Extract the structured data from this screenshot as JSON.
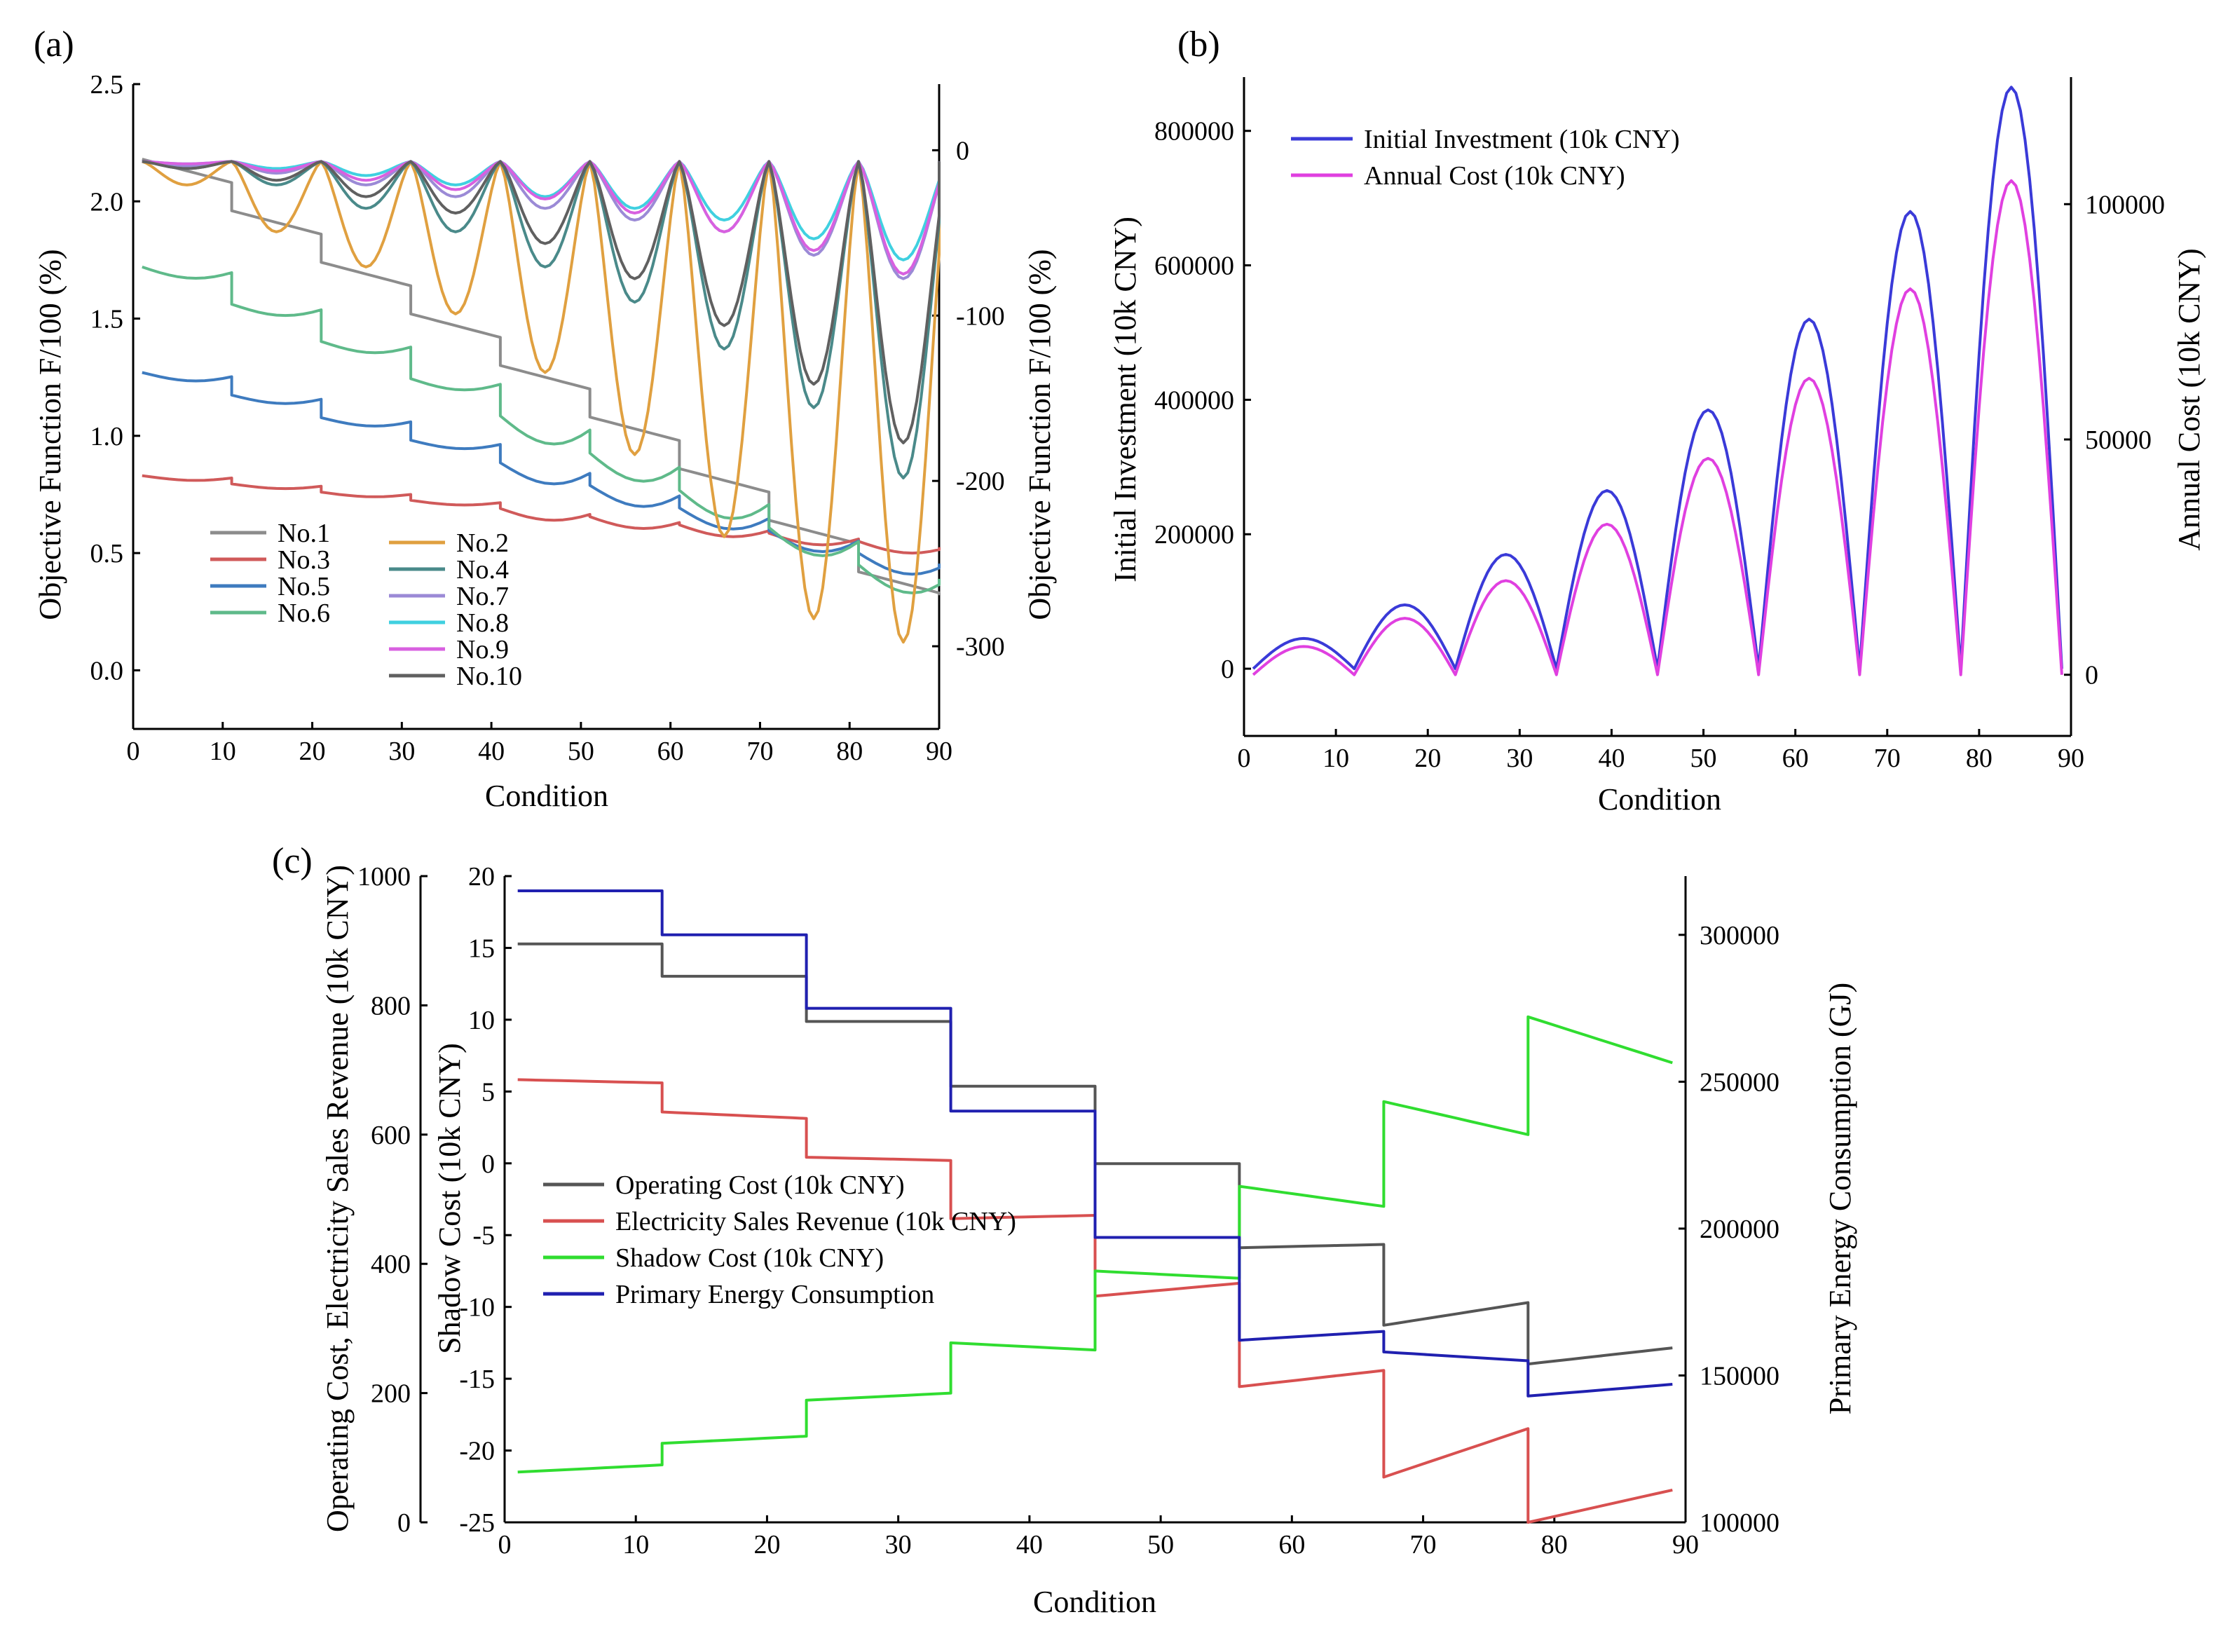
{
  "chart_data": [
    {
      "id": "a",
      "type": "line",
      "panel_label": "(a)",
      "xlabel": "Condition",
      "ylabel": "Objective Function F/100 (%)",
      "y2label": "Objective Function F/100 (%)",
      "xlim": [
        0,
        90
      ],
      "ylim": [
        -0.25,
        2.5
      ],
      "y2lim": [
        -350,
        40
      ],
      "xticks": [
        "0",
        "10",
        "20",
        "30",
        "40",
        "50",
        "60",
        "70",
        "80",
        "90"
      ],
      "yticks": [
        "0.0",
        "0.5",
        "1.0",
        "1.5",
        "2.0",
        "2.5"
      ],
      "y2ticks": [
        "0",
        "-100",
        "-200",
        "-300"
      ],
      "legend_position": "bottom-left",
      "series": [
        {
          "name": "No.1",
          "color": "#8c8c8c",
          "axis": "left",
          "kind": "flat",
          "start": 2.18,
          "end": 0.42,
          "slope": 0.001,
          "drop": 0.04,
          "dip": 0
        },
        {
          "name": "No.3",
          "color": "#d05a5a",
          "axis": "left",
          "kind": "step",
          "start": 0.83,
          "end": 0.55,
          "slope": 0.001,
          "drop": 0.04,
          "dip": 0.05
        },
        {
          "name": "No.5",
          "color": "#3e7bbf",
          "axis": "left",
          "kind": "step",
          "start": 1.27,
          "end": 0.5,
          "slope": 0.001,
          "drop": 0.06,
          "dip": 0.09
        },
        {
          "name": "No.6",
          "color": "#5fba8a",
          "axis": "left",
          "kind": "step",
          "start": 1.72,
          "end": 0.45,
          "slope": 0.001,
          "drop": 0.07,
          "dip": 0.12
        },
        {
          "name": "No.2",
          "color": "#e0a040",
          "axis": "left",
          "kind": "vdip",
          "start": 2.17,
          "end": 2.15,
          "dip_depths": [
            0.1,
            0.3,
            0.45,
            0.65,
            0.9,
            1.25,
            1.6,
            1.95,
            2.05
          ]
        },
        {
          "name": "No.4",
          "color": "#4a8a8a",
          "axis": "left",
          "kind": "vdip",
          "start": 2.17,
          "end": 2.15,
          "dip_depths": [
            0.03,
            0.1,
            0.2,
            0.3,
            0.45,
            0.6,
            0.8,
            1.05,
            1.35
          ]
        },
        {
          "name": "No.7",
          "color": "#9b8ad6",
          "axis": "left",
          "kind": "vdip",
          "start": 2.17,
          "end": 2.15,
          "dip_depths": [
            0.02,
            0.05,
            0.1,
            0.15,
            0.2,
            0.25,
            0.3,
            0.4,
            0.5
          ]
        },
        {
          "name": "No.8",
          "color": "#40d0e0",
          "axis": "left",
          "kind": "vdip",
          "start": 2.17,
          "end": 2.15,
          "dip_depths": [
            0.01,
            0.03,
            0.06,
            0.1,
            0.15,
            0.2,
            0.25,
            0.33,
            0.42
          ]
        },
        {
          "name": "No.9",
          "color": "#d860e0",
          "axis": "left",
          "kind": "vdip",
          "start": 2.17,
          "end": 2.15,
          "dip_depths": [
            0.01,
            0.04,
            0.08,
            0.12,
            0.16,
            0.22,
            0.3,
            0.38,
            0.48
          ]
        },
        {
          "name": "No.10",
          "color": "#606060",
          "axis": "left",
          "kind": "vdip",
          "start": 2.17,
          "end": 2.15,
          "dip_depths": [
            0.03,
            0.08,
            0.15,
            0.22,
            0.35,
            0.5,
            0.7,
            0.95,
            1.2
          ]
        }
      ],
      "legend_columns": [
        [
          "No.1",
          "No.3",
          "No.5",
          "No.6"
        ],
        [
          "No.2",
          "No.4",
          "No.7",
          "No.8",
          "No.9",
          "No.10"
        ]
      ]
    },
    {
      "id": "b",
      "type": "line",
      "panel_label": "(b)",
      "xlabel": "Condition",
      "ylabel": "Initial Investment (10k CNY)",
      "y2label": "Annual Cost (10k CNY)",
      "xlim": [
        0,
        90
      ],
      "ylim": [
        -100000,
        880000
      ],
      "y2lim": [
        -13000,
        127000
      ],
      "xticks": [
        "0",
        "10",
        "20",
        "30",
        "40",
        "50",
        "60",
        "70",
        "80",
        "90"
      ],
      "yticks": [
        "0",
        "200000",
        "400000",
        "600000",
        "800000"
      ],
      "y2ticks": [
        "0",
        "50000",
        "100000"
      ],
      "legend_position": "top-left",
      "series": [
        {
          "name": "Initial Investment (10k CNY)",
          "color": "#3a3ad8",
          "axis": "left",
          "arch_peaks": [
            45000,
            95000,
            170000,
            265000,
            385000,
            520000,
            680000,
            865000
          ],
          "base": 0
        },
        {
          "name": "Annual Cost (10k CNY)",
          "color": "#e040e0",
          "axis": "right",
          "arch_peaks": [
            6000,
            12000,
            20000,
            32000,
            46000,
            63000,
            82000,
            105000
          ],
          "base": 0
        }
      ]
    },
    {
      "id": "c",
      "type": "line",
      "panel_label": "(c)",
      "xlabel": "Condition",
      "ylabel": "Operating Cost, Electricity Sales Revenue (10k CNY)",
      "y2label": "Shadow Cost (10k CNY)",
      "y3label": "Primary Energy Consumption (GJ)",
      "xlim": [
        0,
        90
      ],
      "ylim": [
        0,
        1000
      ],
      "y2lim": [
        -25,
        20
      ],
      "y3lim": [
        100000,
        320000
      ],
      "xticks": [
        "0",
        "10",
        "20",
        "30",
        "40",
        "50",
        "60",
        "70",
        "80",
        "90"
      ],
      "yticks": [
        "0",
        "200",
        "400",
        "600",
        "800",
        "1000"
      ],
      "y2ticks": [
        "20",
        "15",
        "10",
        "5",
        "0",
        "-5",
        "-10",
        "-15",
        "-20",
        "-25"
      ],
      "y3ticks": [
        "100000",
        "150000",
        "200000",
        "250000",
        "300000"
      ],
      "legend_position": "center-left",
      "series": [
        {
          "name": "Operating Cost (10k CNY)",
          "color": "#555555",
          "axis": "left",
          "levels": [
            895,
            845,
            775,
            675,
            555,
            425,
            305,
            245
          ],
          "ends": [
            895,
            845,
            775,
            675,
            555,
            430,
            340,
            270
          ]
        },
        {
          "name": "Electricity Sales Revenue (10k CNY)",
          "color": "#d85050",
          "axis": "left",
          "levels": [
            685,
            635,
            565,
            470,
            350,
            210,
            70,
            0
          ],
          "ends": [
            680,
            625,
            560,
            475,
            370,
            235,
            145,
            50
          ]
        },
        {
          "name": "Shadow Cost (10k CNY)",
          "color": "#30dd30",
          "axis": "y2",
          "levels": [
            -21.5,
            -19.5,
            -16.5,
            -12.5,
            -7.5,
            -1.6,
            4.3,
            10.2
          ],
          "ends": [
            -21,
            -19,
            -16,
            -13,
            -8,
            -3,
            2,
            7
          ]
        },
        {
          "name": "Primary Energy Consumption",
          "color": "#2020b0",
          "axis": "y3",
          "levels": [
            315000,
            300000,
            275000,
            240000,
            197000,
            162000,
            158000,
            143000
          ],
          "ends": [
            315000,
            300000,
            275000,
            240000,
            197000,
            165000,
            155000,
            147000
          ]
        }
      ]
    }
  ]
}
